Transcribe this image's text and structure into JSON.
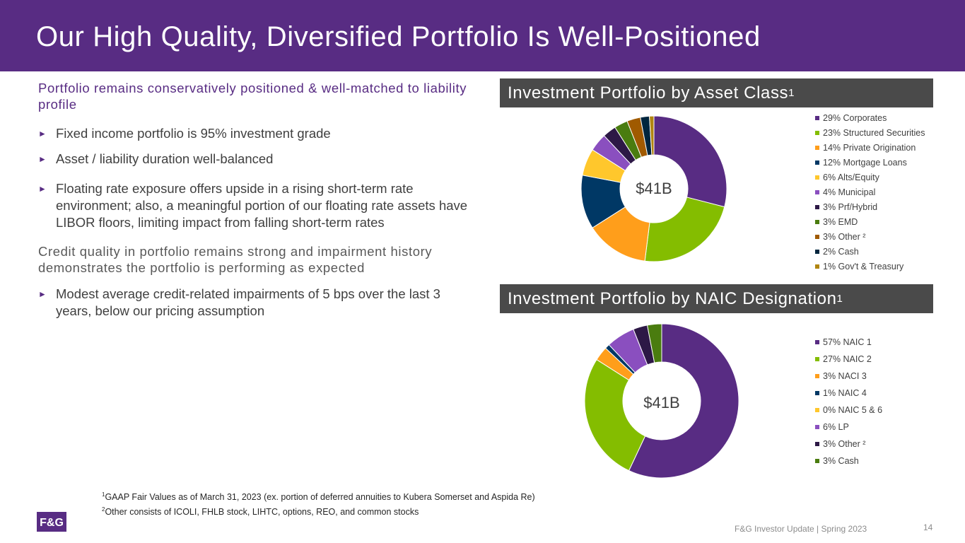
{
  "title": "Our High Quality, Diversified Portfolio Is Well-Positioned",
  "left": {
    "heading1": "Portfolio remains conservatively positioned & well-matched to liability profile",
    "bullets1": [
      "Fixed income portfolio is 95% investment grade",
      "Asset / liability duration well-balanced",
      "Floating rate exposure offers upside in a rising short-term rate environment; also, a meaningful portion of our floating rate assets have LIBOR floors, limiting impact from falling short-term rates"
    ],
    "heading2": "Credit quality in portfolio remains strong and impairment history demonstrates the portfolio is performing as expected",
    "bullets2": [
      "Modest average credit-related impairments of 5 bps over the last 3 years, below our pricing assumption"
    ],
    "arrow": "►"
  },
  "chart_data": [
    {
      "type": "pie",
      "title": "Investment Portfolio by Asset Class",
      "title_sup": "1",
      "center_label": "$41B",
      "categories": [
        "Corporates",
        "Structured Securities",
        "Private Origination",
        "Mortgage Loans",
        "Alts/Equity",
        "Municipal",
        "Prf/Hybrid",
        "EMD",
        "Other",
        "Cash",
        "Gov't & Treasury"
      ],
      "values": [
        29,
        23,
        14,
        12,
        6,
        4,
        3,
        3,
        3,
        2,
        1
      ],
      "legend": [
        "29% Corporates",
        "23% Structured Securities",
        "14% Private Origination",
        "12% Mortgage Loans",
        "6% Alts/Equity",
        "4% Municipal",
        "3% Prf/Hybrid",
        "3% EMD",
        "3% Other ²",
        "2% Cash",
        "1% Gov't & Treasury"
      ],
      "colors": [
        "#582c83",
        "#84bd00",
        "#ff9e1b",
        "#003865",
        "#ffc72c",
        "#8a4fbf",
        "#2d1846",
        "#4a7c0f",
        "#a05a00",
        "#00263e",
        "#b08510"
      ]
    },
    {
      "type": "pie",
      "title": "Investment Portfolio by NAIC Designation",
      "title_sup": "1",
      "center_label": "$41B",
      "categories": [
        "NAIC 1",
        "NAIC 2",
        "NACI 3",
        "NAIC 4",
        "NAIC 5 & 6",
        "LP",
        "Other",
        "Cash"
      ],
      "values": [
        57,
        27,
        3,
        1,
        0,
        6,
        3,
        3
      ],
      "legend": [
        "57% NAIC 1",
        "27% NAIC 2",
        "3% NACI 3",
        "1% NAIC 4",
        "0% NAIC 5 & 6",
        "6% LP",
        "3% Other ²",
        "3% Cash"
      ],
      "colors": [
        "#582c83",
        "#84bd00",
        "#ff9e1b",
        "#003865",
        "#ffc72c",
        "#8a4fbf",
        "#2d1846",
        "#4a7c0f"
      ]
    }
  ],
  "footnotes": [
    {
      "sup": "1",
      "text": "GAAP Fair Values as of March 31, 2023 (ex. portion of deferred annuities to Kubera Somerset and Aspida Re)"
    },
    {
      "sup": "2",
      "text": "Other consists of ICOLI, FHLB stock, LIHTC, options, REO, and common stocks"
    }
  ],
  "logo_text": "F&G",
  "footer": "F&G Investor Update | Spring 2023",
  "page_number": "14",
  "colors": {
    "brand_purple": "#582c83",
    "bar_gray": "#4a4a4a"
  }
}
